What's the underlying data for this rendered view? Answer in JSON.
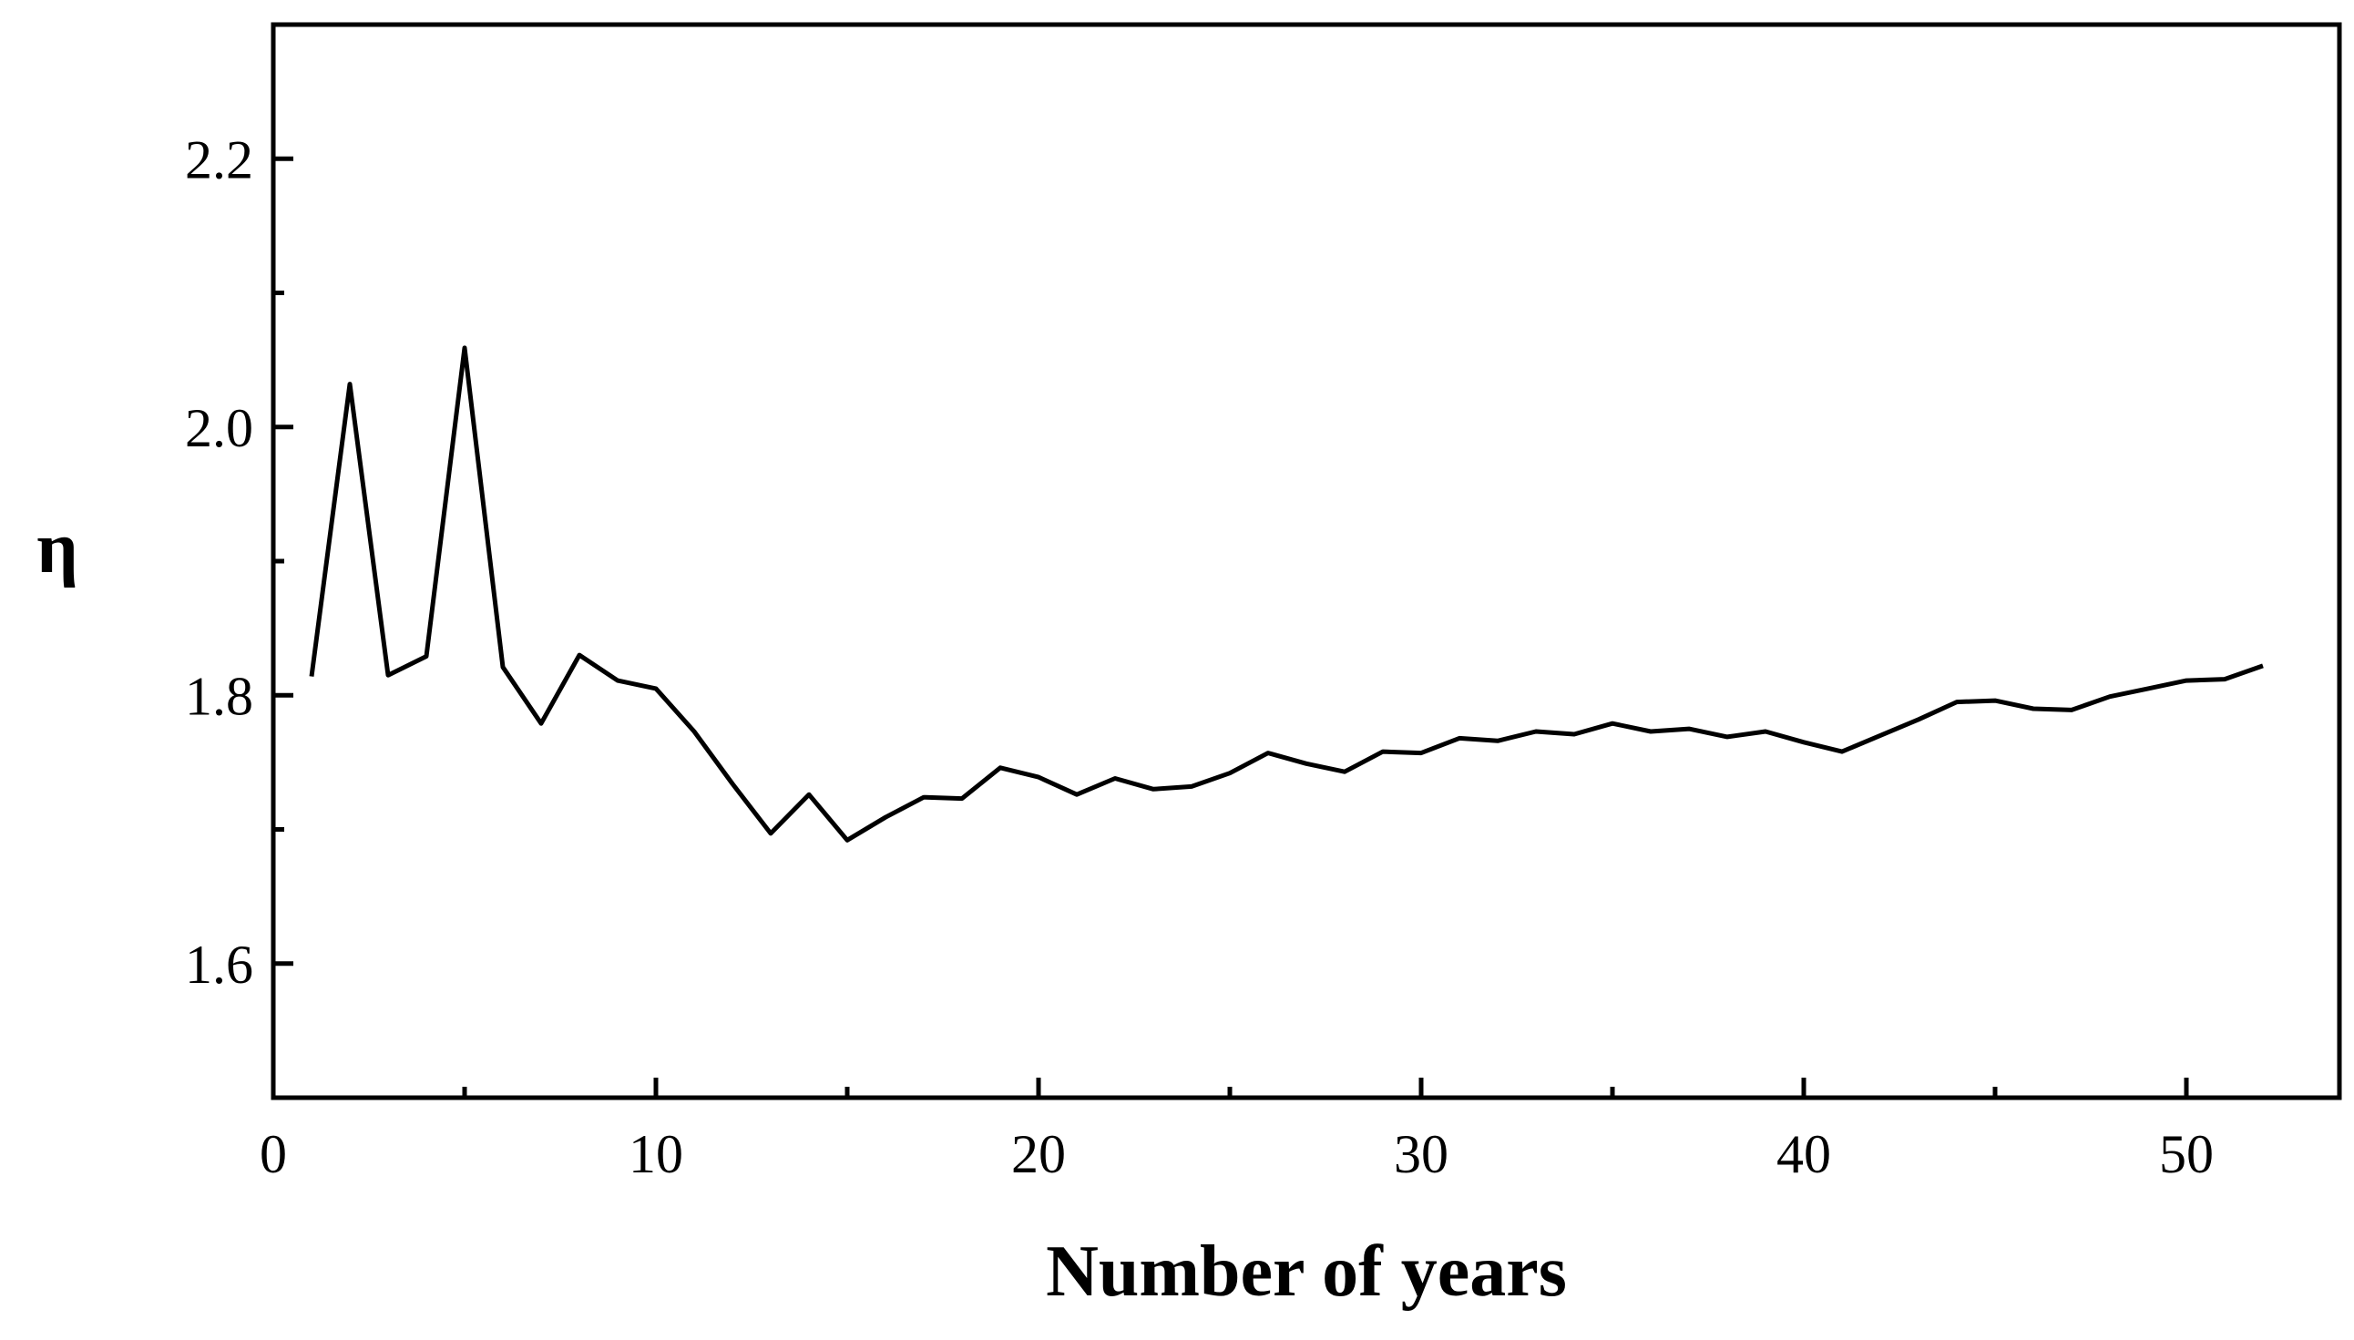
{
  "chart_data": {
    "type": "line",
    "title": "",
    "xlabel": "Number of years",
    "ylabel": "η",
    "xlim": [
      0,
      54
    ],
    "ylim": [
      1.5,
      2.3
    ],
    "x_major_ticks": [
      0,
      10,
      20,
      30,
      40,
      50
    ],
    "x_minor_ticks": [
      5,
      15,
      25,
      35,
      45
    ],
    "y_major_ticks": [
      1.6,
      1.8,
      2.0,
      2.2
    ],
    "y_minor_ticks": [
      1.5,
      1.7,
      1.9,
      2.1,
      2.3
    ],
    "x_tick_labels": [
      "0",
      "10",
      "20",
      "30",
      "40",
      "50"
    ],
    "y_tick_labels": [
      "1.6",
      "1.8",
      "2.0",
      "2.2"
    ],
    "grid": false,
    "legend": "none",
    "line_color": "#000000",
    "series": [
      {
        "x": [
          1,
          2,
          3,
          4,
          5,
          6,
          7,
          8,
          9,
          10,
          11,
          12,
          13,
          14,
          15,
          16,
          17,
          18,
          19,
          20,
          21,
          22,
          23,
          24,
          25,
          26,
          27,
          28,
          29,
          30,
          31,
          32,
          33,
          34,
          35,
          36,
          37,
          38,
          39,
          40,
          41,
          42,
          43,
          44,
          45,
          46,
          47,
          48,
          49,
          50,
          51,
          52
        ],
        "values": [
          1.814,
          2.032,
          1.815,
          1.829,
          2.059,
          1.821,
          1.779,
          1.83,
          1.811,
          1.805,
          1.773,
          1.734,
          1.697,
          1.726,
          1.692,
          1.709,
          1.724,
          1.723,
          1.746,
          1.739,
          1.726,
          1.738,
          1.73,
          1.732,
          1.742,
          1.757,
          1.749,
          1.743,
          1.758,
          1.757,
          1.768,
          1.766,
          1.773,
          1.771,
          1.779,
          1.773,
          1.775,
          1.769,
          1.773,
          1.765,
          1.758,
          1.77,
          1.782,
          1.795,
          1.796,
          1.79,
          1.789,
          1.799,
          1.805,
          1.811,
          1.812,
          1.822
        ]
      }
    ]
  }
}
